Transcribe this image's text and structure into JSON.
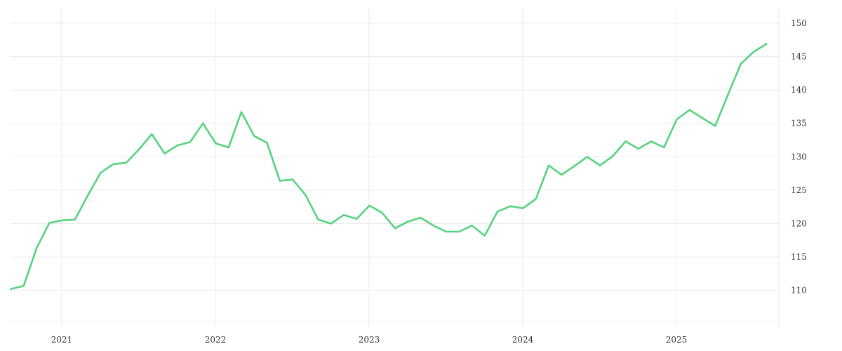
{
  "chart_data": {
    "type": "line",
    "title": "",
    "xlabel": "",
    "ylabel": "",
    "x_tick_labels": [
      "2021",
      "2022",
      "2023",
      "2024",
      "2025"
    ],
    "y_tick_labels": [
      "110",
      "115",
      "120",
      "125",
      "130",
      "135",
      "140",
      "145",
      "150"
    ],
    "y_ticks": [
      110,
      115,
      120,
      125,
      130,
      135,
      140,
      145,
      150
    ],
    "ylim": [
      104.3,
      152.2
    ],
    "xlim": [
      "2020-09-01",
      "2025-09-01"
    ],
    "y_axis_side": "right",
    "grid": true,
    "legend": "none",
    "colors": {
      "line": "#56d37e",
      "grid": "#ebebeb",
      "text": "#333333"
    },
    "series": [
      {
        "x": [
          "2020-09",
          "2020-10",
          "2020-11",
          "2020-12",
          "2021-01",
          "2021-02",
          "2021-03",
          "2021-04",
          "2021-05",
          "2021-06",
          "2021-07",
          "2021-08",
          "2021-09",
          "2021-10",
          "2021-11",
          "2021-12",
          "2022-01",
          "2022-02",
          "2022-03",
          "2022-04",
          "2022-05",
          "2022-06",
          "2022-07",
          "2022-08",
          "2022-09",
          "2022-10",
          "2022-11",
          "2022-12",
          "2023-01",
          "2023-02",
          "2023-03",
          "2023-04",
          "2023-05",
          "2023-06",
          "2023-07",
          "2023-08",
          "2023-09",
          "2023-10",
          "2023-11",
          "2023-12",
          "2024-01",
          "2024-02",
          "2024-03",
          "2024-04",
          "2024-05",
          "2024-06",
          "2024-07",
          "2024-08",
          "2024-09",
          "2024-10",
          "2024-11",
          "2024-12",
          "2025-01",
          "2025-02",
          "2025-03",
          "2025-04",
          "2025-05",
          "2025-06",
          "2025-07",
          "2025-08"
        ],
        "values": [
          110.2,
          110.7,
          116.3,
          120.1,
          120.5,
          120.6,
          124.2,
          127.6,
          128.9,
          129.1,
          131.1,
          133.4,
          130.5,
          131.7,
          132.2,
          135.0,
          132.0,
          131.4,
          136.7,
          133.1,
          132.1,
          126.4,
          126.6,
          124.3,
          120.6,
          120.0,
          121.3,
          120.7,
          122.7,
          121.6,
          119.3,
          120.3,
          120.9,
          119.7,
          118.8,
          118.8,
          119.7,
          118.2,
          121.8,
          122.6,
          122.3,
          123.7,
          128.7,
          127.3,
          128.6,
          130.0,
          128.7,
          130.1,
          132.3,
          131.2,
          132.3,
          131.4,
          135.6,
          137.0,
          135.8,
          134.6,
          139.3,
          143.9,
          145.7,
          146.9
        ]
      }
    ]
  }
}
